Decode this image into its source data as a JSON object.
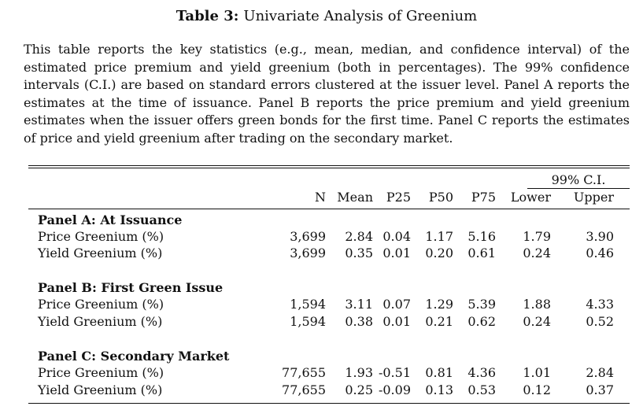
{
  "title": {
    "label": "Table 3:",
    "text": "Univariate Analysis of Greenium"
  },
  "caption": "This table reports the key statistics (e.g., mean, median, and confidence interval) of the estimated price premium and yield greenium (both in percentages). The 99% confidence intervals (C.I.) are based on standard errors clustered at the issuer level. Panel A reports the estimates at the time of issuance. Panel B reports the price premium and yield greenium estimates when the issuer offers green bonds for the first time. Panel C reports the estimates of price and yield greenium after trading on the secondary market.",
  "table": {
    "ci_header": "99% C.I.",
    "columns": [
      "N",
      "Mean",
      "P25",
      "P50",
      "P75",
      "Lower",
      "Upper"
    ],
    "panels": [
      {
        "title": "Panel A: At Issuance",
        "rows": [
          {
            "label": "Price Greenium (%)",
            "values": [
              "3,699",
              "2.84",
              "0.04",
              "1.17",
              "5.16",
              "1.79",
              "3.90"
            ]
          },
          {
            "label": "Yield Greenium (%)",
            "values": [
              "3,699",
              "0.35",
              "0.01",
              "0.20",
              "0.61",
              "0.24",
              "0.46"
            ]
          }
        ]
      },
      {
        "title": "Panel B: First Green Issue",
        "rows": [
          {
            "label": "Price Greenium (%)",
            "values": [
              "1,594",
              "3.11",
              "0.07",
              "1.29",
              "5.39",
              "1.88",
              "4.33"
            ]
          },
          {
            "label": "Yield Greenium (%)",
            "values": [
              "1,594",
              "0.38",
              "0.01",
              "0.21",
              "0.62",
              "0.24",
              "0.52"
            ]
          }
        ]
      },
      {
        "title": "Panel C: Secondary Market",
        "rows": [
          {
            "label": "Price Greenium (%)",
            "values": [
              "77,655",
              "1.93",
              "-0.51",
              "0.81",
              "4.36",
              "1.01",
              "2.84"
            ]
          },
          {
            "label": "Yield Greenium (%)",
            "values": [
              "77,655",
              "0.25",
              "-0.09",
              "0.13",
              "0.53",
              "0.12",
              "0.37"
            ]
          }
        ]
      }
    ]
  }
}
